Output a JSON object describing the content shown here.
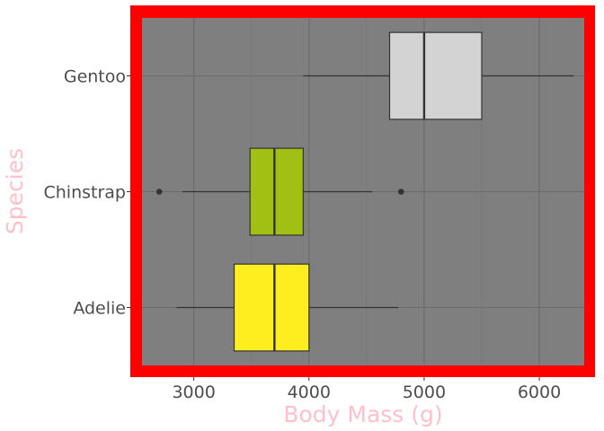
{
  "chart_data": {
    "type": "boxplot",
    "orientation": "horizontal",
    "xlabel": "Body Mass (g)",
    "ylabel": "Species",
    "xlim": [
      2550,
      6390
    ],
    "x_ticks": [
      3000,
      4000,
      5000,
      6000
    ],
    "x_tick_labels": [
      "3000",
      "4000",
      "5000",
      "6000"
    ],
    "x_minor_ticks": [
      3500,
      4500,
      5500
    ],
    "grid": true,
    "panel_background": "#7f7f7f",
    "panel_border_color": "#ff0000",
    "axis_title_color": "#ffc0cb",
    "categories": [
      "Adelie",
      "Chinstrap",
      "Gentoo"
    ],
    "boxes": [
      {
        "name": "Adelie",
        "whisker_low": 2850,
        "q1": 3350,
        "median": 3700,
        "q3": 4000,
        "whisker_high": 4775,
        "outliers": [],
        "fill": "#ffee1f"
      },
      {
        "name": "Chinstrap",
        "whisker_low": 2900,
        "q1": 3488,
        "median": 3700,
        "q3": 3950,
        "whisker_high": 4550,
        "outliers": [
          2700,
          4800
        ],
        "fill": "#a2c014"
      },
      {
        "name": "Gentoo",
        "whisker_low": 3950,
        "q1": 4700,
        "median": 5000,
        "q3": 5500,
        "whisker_high": 6300,
        "outliers": [],
        "fill": "#d3d3d3"
      }
    ]
  }
}
